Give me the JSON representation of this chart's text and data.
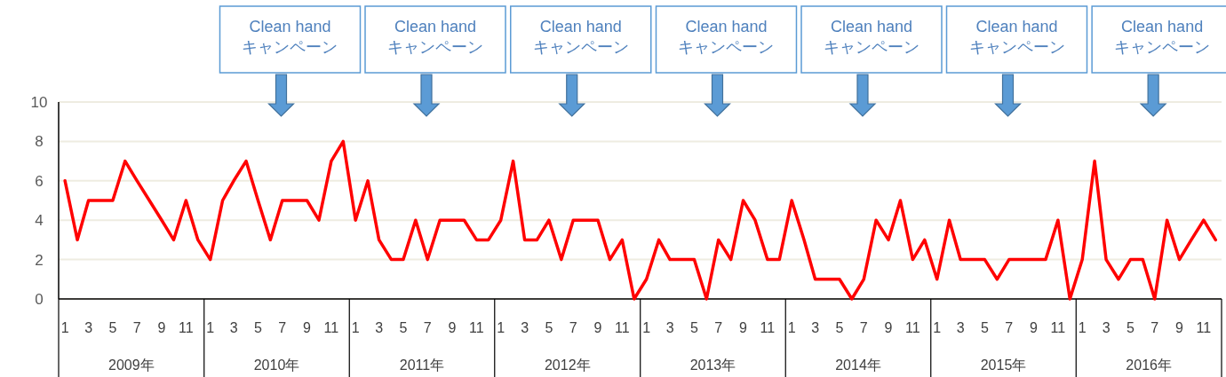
{
  "chart_data": {
    "type": "line",
    "x": [
      "2009-01",
      "2009-02",
      "2009-03",
      "2009-04",
      "2009-05",
      "2009-06",
      "2009-07",
      "2009-08",
      "2009-09",
      "2009-10",
      "2009-11",
      "2009-12",
      "2010-01",
      "2010-02",
      "2010-03",
      "2010-04",
      "2010-05",
      "2010-06",
      "2010-07",
      "2010-08",
      "2010-09",
      "2010-10",
      "2010-11",
      "2010-12",
      "2011-01",
      "2011-02",
      "2011-03",
      "2011-04",
      "2011-05",
      "2011-06",
      "2011-07",
      "2011-08",
      "2011-09",
      "2011-10",
      "2011-11",
      "2011-12",
      "2012-01",
      "2012-02",
      "2012-03",
      "2012-04",
      "2012-05",
      "2012-06",
      "2012-07",
      "2012-08",
      "2012-09",
      "2012-10",
      "2012-11",
      "2012-12",
      "2013-01",
      "2013-02",
      "2013-03",
      "2013-04",
      "2013-05",
      "2013-06",
      "2013-07",
      "2013-08",
      "2013-09",
      "2013-10",
      "2013-11",
      "2013-12",
      "2014-01",
      "2014-02",
      "2014-03",
      "2014-04",
      "2014-05",
      "2014-06",
      "2014-07",
      "2014-08",
      "2014-09",
      "2014-10",
      "2014-11",
      "2014-12",
      "2015-01",
      "2015-02",
      "2015-03",
      "2015-04",
      "2015-05",
      "2015-06",
      "2015-07",
      "2015-08",
      "2015-09",
      "2015-10",
      "2015-11",
      "2015-12",
      "2016-01",
      "2016-02",
      "2016-03",
      "2016-04",
      "2016-05",
      "2016-06",
      "2016-07",
      "2016-08",
      "2016-09",
      "2016-10",
      "2016-11",
      "2016-12"
    ],
    "series": [
      {
        "color": "#ff0000",
        "values": [
          6,
          3,
          5,
          5,
          5,
          7,
          6,
          5,
          4,
          3,
          5,
          3,
          2,
          5,
          6,
          7,
          5,
          3,
          5,
          5,
          5,
          4,
          7,
          8,
          4,
          6,
          3,
          2,
          2,
          4,
          2,
          4,
          4,
          4,
          3,
          3,
          4,
          7,
          3,
          3,
          4,
          2,
          4,
          4,
          4,
          2,
          3,
          0,
          1,
          3,
          2,
          2,
          2,
          0,
          3,
          2,
          5,
          4,
          2,
          2,
          5,
          3,
          1,
          1,
          1,
          0,
          1,
          4,
          3,
          5,
          2,
          3,
          1,
          4,
          2,
          2,
          2,
          1,
          2,
          2,
          2,
          2,
          4,
          0,
          2,
          7,
          2,
          1,
          2,
          2,
          0,
          4,
          2,
          3,
          4,
          3
        ]
      }
    ],
    "ylim": [
      0,
      10
    ],
    "yticks": [
      0,
      2,
      4,
      6,
      8,
      10
    ],
    "xlim": [
      "2008-12-16",
      "2016-12-16"
    ],
    "xticks": [
      {
        "value": "2009-01",
        "label": "1"
      },
      {
        "value": "2009-03",
        "label": "3"
      },
      {
        "value": "2009-05",
        "label": "5"
      },
      {
        "value": "2009-07",
        "label": "7"
      },
      {
        "value": "2009-09",
        "label": "9"
      },
      {
        "value": "2009-11",
        "label": "11"
      },
      {
        "value": "2010-01",
        "label": "1"
      },
      {
        "value": "2010-03",
        "label": "3"
      },
      {
        "value": "2010-05",
        "label": "5"
      },
      {
        "value": "2010-07",
        "label": "7"
      },
      {
        "value": "2010-09",
        "label": "9"
      },
      {
        "value": "2010-11",
        "label": "11"
      },
      {
        "value": "2011-01",
        "label": "1"
      },
      {
        "value": "2011-03",
        "label": "3"
      },
      {
        "value": "2011-05",
        "label": "5"
      },
      {
        "value": "2011-07",
        "label": "7"
      },
      {
        "value": "2011-09",
        "label": "9"
      },
      {
        "value": "2011-11",
        "label": "11"
      },
      {
        "value": "2012-01",
        "label": "1"
      },
      {
        "value": "2012-03",
        "label": "3"
      },
      {
        "value": "2012-05",
        "label": "5"
      },
      {
        "value": "2012-07",
        "label": "7"
      },
      {
        "value": "2012-09",
        "label": "9"
      },
      {
        "value": "2012-11",
        "label": "11"
      },
      {
        "value": "2013-01",
        "label": "1"
      },
      {
        "value": "2013-03",
        "label": "3"
      },
      {
        "value": "2013-05",
        "label": "5"
      },
      {
        "value": "2013-07",
        "label": "7"
      },
      {
        "value": "2013-09",
        "label": "9"
      },
      {
        "value": "2013-11",
        "label": "11"
      },
      {
        "value": "2014-01",
        "label": "1"
      },
      {
        "value": "2014-03",
        "label": "3"
      },
      {
        "value": "2014-05",
        "label": "5"
      },
      {
        "value": "2014-07",
        "label": "7"
      },
      {
        "value": "2014-09",
        "label": "9"
      },
      {
        "value": "2014-11",
        "label": "11"
      },
      {
        "value": "2015-01",
        "label": "1"
      },
      {
        "value": "2015-03",
        "label": "3"
      },
      {
        "value": "2015-05",
        "label": "5"
      },
      {
        "value": "2015-07",
        "label": "7"
      },
      {
        "value": "2015-09",
        "label": "9"
      },
      {
        "value": "2015-11",
        "label": "11"
      },
      {
        "value": "2016-01",
        "label": "1"
      },
      {
        "value": "2016-03",
        "label": "3"
      },
      {
        "value": "2016-05",
        "label": "5"
      },
      {
        "value": "2016-07",
        "label": "7"
      },
      {
        "value": "2016-09",
        "label": "9"
      },
      {
        "value": "2016-11",
        "label": "11"
      }
    ],
    "grid": "y",
    "marker": "none",
    "line_style": "solid",
    "annotations": [
      "2009年",
      "2010年",
      "2011年",
      "2012年",
      "2013年",
      "2014年",
      "2015年",
      "2016年",
      "Clean hand\nキャンペーン",
      "Clean hand\nキャンペーン",
      "Clean hand\nキャンペーン",
      "Clean hand\nキャンペーン",
      "Clean hand\nキャンペーン",
      "Clean hand\nキャンペーン",
      "Clean hand\nキャンペーン"
    ]
  }
}
